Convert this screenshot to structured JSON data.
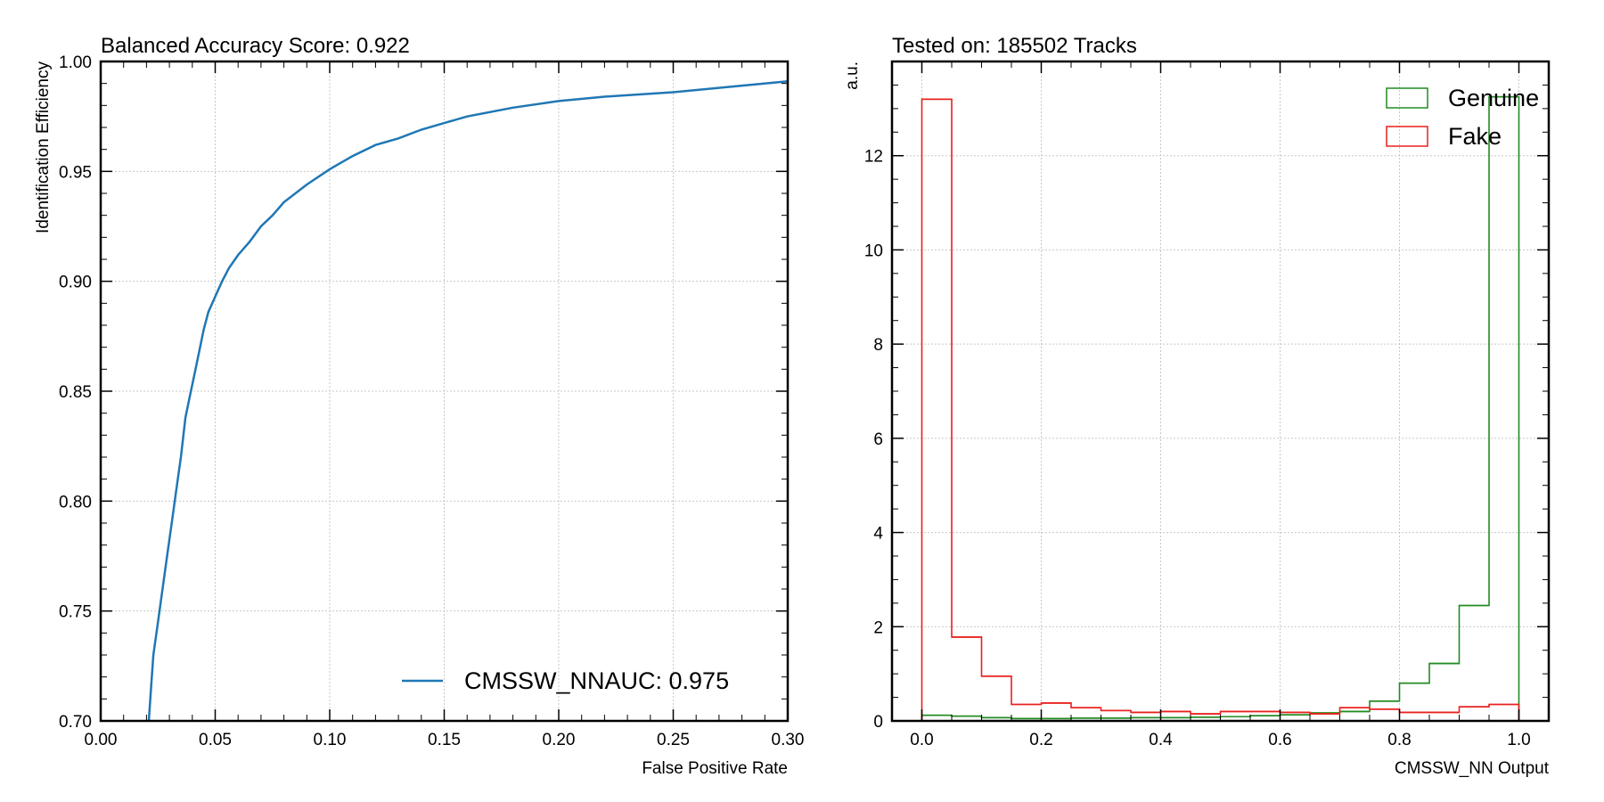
{
  "chart_data": [
    {
      "type": "line",
      "title": "Balanced Accuracy Score: 0.922",
      "xlabel": "False Positive Rate",
      "ylabel": "Identification Efficiency",
      "xlim": [
        0.0,
        0.3
      ],
      "ylim": [
        0.7,
        1.0
      ],
      "xticks": [
        "0.00",
        "0.05",
        "0.10",
        "0.15",
        "0.20",
        "0.25",
        "0.30"
      ],
      "yticks": [
        "0.70",
        "0.75",
        "0.80",
        "0.85",
        "0.90",
        "0.95",
        "1.00"
      ],
      "grid": true,
      "legend_position": "bottom-right",
      "series": [
        {
          "name": "CMSSW_NNAUC: 0.975",
          "color": "#1f77b4",
          "x": [
            0.021,
            0.022,
            0.023,
            0.025,
            0.027,
            0.029,
            0.031,
            0.033,
            0.035,
            0.037,
            0.039,
            0.041,
            0.043,
            0.045,
            0.047,
            0.05,
            0.053,
            0.056,
            0.06,
            0.065,
            0.07,
            0.075,
            0.08,
            0.085,
            0.09,
            0.1,
            0.11,
            0.12,
            0.13,
            0.14,
            0.15,
            0.16,
            0.18,
            0.2,
            0.22,
            0.25,
            0.28,
            0.3
          ],
          "y": [
            0.7,
            0.715,
            0.73,
            0.745,
            0.76,
            0.775,
            0.79,
            0.805,
            0.82,
            0.838,
            0.848,
            0.858,
            0.868,
            0.878,
            0.886,
            0.893,
            0.9,
            0.906,
            0.912,
            0.918,
            0.925,
            0.93,
            0.936,
            0.94,
            0.944,
            0.951,
            0.957,
            0.962,
            0.965,
            0.969,
            0.972,
            0.975,
            0.979,
            0.982,
            0.984,
            0.986,
            0.989,
            0.991
          ]
        }
      ]
    },
    {
      "type": "histogram",
      "title": "Tested on: 185502 Tracks",
      "xlabel": "CMSSW_NN Output",
      "ylabel": "a.u.",
      "xlim": [
        -0.05,
        1.05
      ],
      "ylim": [
        0,
        14
      ],
      "xticks": [
        "0.0",
        "0.2",
        "0.4",
        "0.6",
        "0.8",
        "1.0"
      ],
      "yticks": [
        "0",
        "2",
        "4",
        "6",
        "8",
        "10",
        "12"
      ],
      "grid": true,
      "legend_position": "top-right",
      "bin_edges": [
        0.0,
        0.05,
        0.1,
        0.15,
        0.2,
        0.25,
        0.3,
        0.35,
        0.4,
        0.45,
        0.5,
        0.55,
        0.6,
        0.65,
        0.7,
        0.75,
        0.8,
        0.85,
        0.9,
        0.95,
        1.0
      ],
      "series": [
        {
          "name": "Genuine",
          "color": "#228b22",
          "values": [
            0.12,
            0.1,
            0.07,
            0.05,
            0.05,
            0.06,
            0.06,
            0.07,
            0.07,
            0.08,
            0.09,
            0.11,
            0.13,
            0.17,
            0.2,
            0.42,
            0.8,
            1.22,
            2.45,
            13.25
          ]
        },
        {
          "name": "Fake",
          "color": "#e8211d",
          "values": [
            13.2,
            1.78,
            0.95,
            0.35,
            0.38,
            0.28,
            0.22,
            0.18,
            0.2,
            0.15,
            0.2,
            0.2,
            0.18,
            0.15,
            0.28,
            0.25,
            0.18,
            0.18,
            0.3,
            0.35
          ]
        }
      ]
    }
  ]
}
